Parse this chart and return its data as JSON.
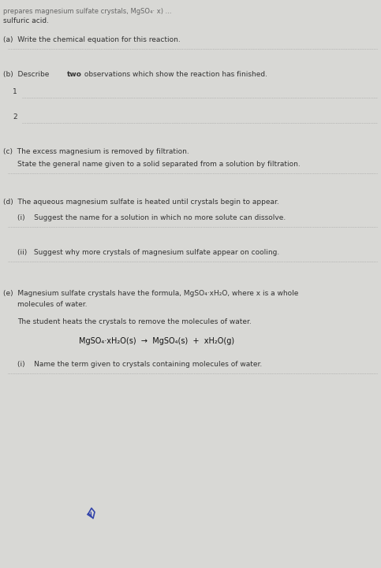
{
  "bg_color": "#d8d8d5",
  "text_color": "#333333",
  "header1": "prepares magnesium sulfate crystals, MgSO₄· x) ...",
  "header2": "sulfuric acid.",
  "a_q": "(a)  Write the chemical equation for this reaction.",
  "b_q1": "(b)  Describe ",
  "b_bold": "two",
  "b_q2": " observations which show the reaction has finished.",
  "b_1": "1",
  "b_2": "2",
  "c_q1": "(c)  The excess magnesium is removed by filtration.",
  "c_q2": "State the general name given to a solid separated from a solution by filtration.",
  "d_q": "(d)  The aqueous magnesium sulfate is heated until crystals begin to appear.",
  "d_i_q": "(i)    Suggest the name for a solution in which no more solute can dissolve.",
  "d_ii_q": "(ii)   Suggest why more crystals of magnesium sulfate appear on cooling.",
  "e_q1a": "(e)  Magnesium sulfate crystals have the formula, MgSO₄·xH₂O, where x is a whole",
  "e_q1b": "molecules of water.",
  "e_q2": "The student heats the crystals to remove the molecules of water.",
  "e_eq": "MgSO₄·xH₂O(s)  →  MgSO₄(s)  +  xH₂O(g)",
  "e_i_q": "(i)    Name the term given to crystals containing molecules of water.",
  "dot_color": "#999999",
  "font_size": 6.5,
  "font_size_eq": 7.0,
  "header_color": "#666666",
  "watermark_color": "#3344aa"
}
